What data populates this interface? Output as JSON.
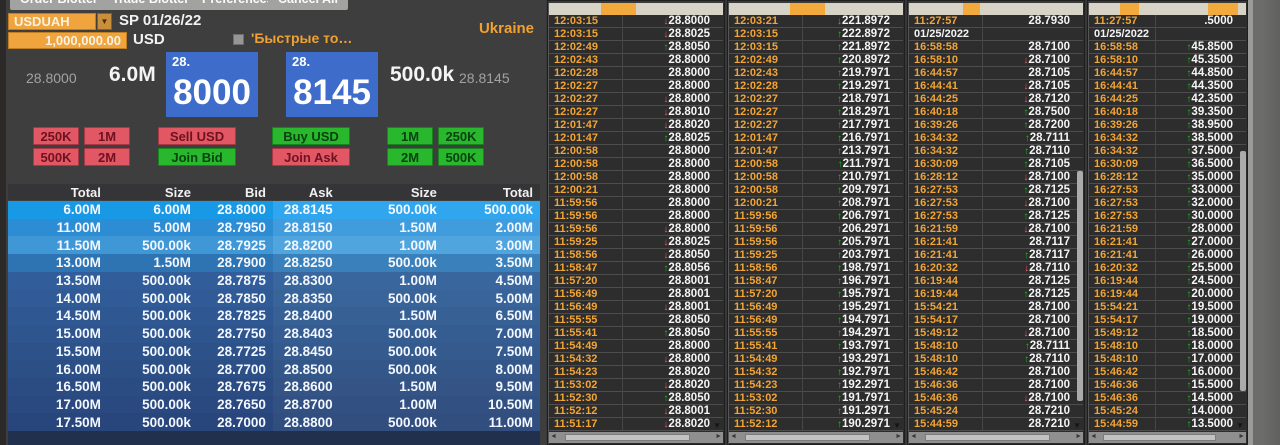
{
  "menu": {
    "tabs": [
      "Order Blotter",
      "Trade Blotter",
      "Preferences",
      "Cancel All"
    ]
  },
  "icons": {
    "dropdown": "▼",
    "up_arrow": "↑",
    "down_arrow": "↓",
    "scroll_left": "◄",
    "scroll_right": "►",
    "scroll_down": "▼"
  },
  "colors": {
    "accent_orange": "#f0a132",
    "field_orange": "#efa43d",
    "buy_green": "#29b72e",
    "sell_red": "#e25764",
    "price_box_blue": "#3e6ccb",
    "time_orange": "#f2a435",
    "up_green": "#14bf1d",
    "down_red": "#e85965"
  },
  "trade_panel": {
    "pair": "USDUAH",
    "value_date": "SP 01/26/22",
    "region": "Ukraine",
    "amount": "1,000,000.00",
    "currency": "USD",
    "quick_trades_label": "'Быстрые то…",
    "bid_low": "28.8000",
    "bid_size": "6.0M",
    "bid_handle": "28.",
    "bid_pips": "8000",
    "ask_handle": "28.",
    "ask_pips": "8145",
    "ask_size": "500.0k",
    "ask_price": "28.8145",
    "buttons": {
      "sell": "Sell USD",
      "join_bid": "Join Bid",
      "buy": "Buy USD",
      "join_ask": "Join Ask",
      "left_amounts": [
        "250K",
        "1M",
        "500K",
        "2M"
      ],
      "right_amounts": [
        "1M",
        "250K",
        "2M",
        "500K"
      ]
    },
    "depth": {
      "headers": [
        "Total",
        "Size",
        "Bid",
        "Ask",
        "Size",
        "Total"
      ],
      "rows": [
        [
          "6.00M",
          "6.00M",
          "28.8000",
          "28.8145",
          "500.00k",
          "500.00k"
        ],
        [
          "11.00M",
          "5.00M",
          "28.7950",
          "28.8150",
          "1.50M",
          "2.00M"
        ],
        [
          "11.50M",
          "500.00k",
          "28.7925",
          "28.8200",
          "1.00M",
          "3.00M"
        ],
        [
          "13.00M",
          "1.50M",
          "28.7900",
          "28.8250",
          "500.00k",
          "3.50M"
        ],
        [
          "13.50M",
          "500.00k",
          "28.7875",
          "28.8300",
          "1.00M",
          "4.50M"
        ],
        [
          "14.00M",
          "500.00k",
          "28.7850",
          "28.8350",
          "500.00k",
          "5.00M"
        ],
        [
          "14.50M",
          "500.00k",
          "28.7825",
          "28.8400",
          "1.50M",
          "6.50M"
        ],
        [
          "15.00M",
          "500.00k",
          "28.7750",
          "28.8403",
          "500.00k",
          "7.00M"
        ],
        [
          "15.50M",
          "500.00k",
          "28.7725",
          "28.8450",
          "500.00k",
          "7.50M"
        ],
        [
          "16.00M",
          "500.00k",
          "28.7700",
          "28.8500",
          "500.00k",
          "8.00M"
        ],
        [
          "16.50M",
          "500.00k",
          "28.7675",
          "28.8600",
          "1.50M",
          "9.50M"
        ],
        [
          "17.00M",
          "500.00k",
          "28.7650",
          "28.8700",
          "1.00M",
          "10.50M"
        ],
        [
          "17.50M",
          "500.00k",
          "28.7000",
          "28.8800",
          "500.00k",
          "11.00M"
        ]
      ],
      "row_colors": [
        [
          "#1899e6",
          "#2fa6ee"
        ],
        [
          "#2d8dd4",
          "#419cdd"
        ],
        [
          "#3f97d6",
          "#51a5de"
        ],
        [
          "#2e74b2",
          "#3a80ba"
        ],
        [
          "#315e9a",
          "#39679d"
        ],
        [
          "#305b96",
          "#386499"
        ],
        [
          "#2f5892",
          "#376095"
        ],
        [
          "#2e558e",
          "#365d91"
        ],
        [
          "#2d528a",
          "#355a8d"
        ],
        [
          "#2c4f86",
          "#345789"
        ],
        [
          "#2b4c82",
          "#335485"
        ],
        [
          "#2a4980",
          "#325182"
        ],
        [
          "#29467c",
          "#314e7f"
        ]
      ]
    }
  },
  "tickers": [
    {
      "rows": [
        [
          "12:03:15",
          "28.8000",
          "dn"
        ],
        [
          "12:03:15",
          "28.8025",
          "dn"
        ],
        [
          "12:02:49",
          "28.8050",
          "up"
        ],
        [
          "12:02:43",
          "28.8000",
          ""
        ],
        [
          "12:02:28",
          "28.8000",
          ""
        ],
        [
          "12:02:27",
          "28.8000",
          ""
        ],
        [
          "12:02:27",
          "28.8000",
          "dn"
        ],
        [
          "12:02:27",
          "28.8010",
          "dn"
        ],
        [
          "12:01:47",
          "28.8020",
          "dn"
        ],
        [
          "12:01:47",
          "28.8025",
          "up"
        ],
        [
          "12:00:58",
          "28.8000",
          ""
        ],
        [
          "12:00:58",
          "28.8000",
          ""
        ],
        [
          "12:00:58",
          "28.8000",
          ""
        ],
        [
          "12:00:21",
          "28.8000",
          ""
        ],
        [
          "11:59:56",
          "28.8000",
          ""
        ],
        [
          "11:59:56",
          "28.8000",
          ""
        ],
        [
          "11:59:56",
          "28.8000",
          "dn"
        ],
        [
          "11:59:25",
          "28.8025",
          "dn"
        ],
        [
          "11:58:56",
          "28.8050",
          "dn"
        ],
        [
          "11:58:47",
          "28.8056",
          "up"
        ],
        [
          "11:57:20",
          "28.8001",
          ""
        ],
        [
          "11:56:49",
          "28.8001",
          ""
        ],
        [
          "11:56:49",
          "28.8001",
          "dn"
        ],
        [
          "11:55:55",
          "28.8050",
          ""
        ],
        [
          "11:55:41",
          "28.8050",
          "up"
        ],
        [
          "11:54:49",
          "28.8000",
          ""
        ],
        [
          "11:54:32",
          "28.8000",
          "dn"
        ],
        [
          "11:54:23",
          "28.8020",
          ""
        ],
        [
          "11:53:02",
          "28.8020",
          "dn"
        ],
        [
          "11:52:30",
          "28.8050",
          "up"
        ],
        [
          "11:52:12",
          "28.8001",
          "dn"
        ],
        [
          "11:51:17",
          "28.8020",
          "dn"
        ]
      ]
    },
    {
      "rows": [
        [
          "12:03:21",
          "221.8972",
          "dn"
        ],
        [
          "12:03:15",
          "222.8972",
          "up"
        ],
        [
          "12:03:15",
          "221.8972",
          "up"
        ],
        [
          "12:02:49",
          "220.8972",
          "up"
        ],
        [
          "12:02:43",
          "219.7971",
          "up"
        ],
        [
          "12:02:28",
          "219.2971",
          "up"
        ],
        [
          "12:02:27",
          "218.7971",
          "up"
        ],
        [
          "12:02:27",
          "218.2971",
          "up"
        ],
        [
          "12:02:27",
          "217.7971",
          "up"
        ],
        [
          "12:01:47",
          "216.7971",
          "up"
        ],
        [
          "12:01:47",
          "213.7971",
          "up"
        ],
        [
          "12:00:58",
          "211.7971",
          "up"
        ],
        [
          "12:00:58",
          "210.7971",
          "up"
        ],
        [
          "12:00:58",
          "209.7971",
          "up"
        ],
        [
          "12:00:21",
          "208.7971",
          "up"
        ],
        [
          "11:59:56",
          "206.7971",
          "up"
        ],
        [
          "11:59:56",
          "206.2971",
          "up"
        ],
        [
          "11:59:56",
          "205.7971",
          "up"
        ],
        [
          "11:59:25",
          "203.7971",
          "up"
        ],
        [
          "11:58:56",
          "198.7971",
          "up"
        ],
        [
          "11:58:47",
          "196.7971",
          "up"
        ],
        [
          "11:57:20",
          "195.7971",
          "up"
        ],
        [
          "11:56:49",
          "195.2971",
          "up"
        ],
        [
          "11:56:49",
          "194.7971",
          "up"
        ],
        [
          "11:55:55",
          "194.2971",
          "up"
        ],
        [
          "11:55:41",
          "193.7971",
          "up"
        ],
        [
          "11:54:49",
          "193.2971",
          "up"
        ],
        [
          "11:54:32",
          "192.7971",
          "up"
        ],
        [
          "11:54:23",
          "192.2971",
          "up"
        ],
        [
          "11:53:02",
          "191.7971",
          "up"
        ],
        [
          "11:52:30",
          "191.2971",
          "up"
        ],
        [
          "11:52:12",
          "190.2971",
          "up"
        ]
      ]
    },
    {
      "rows": [
        [
          "11:27:57",
          "28.7930",
          ""
        ],
        [
          "01/25/2022",
          "",
          "date"
        ],
        [
          "16:58:58",
          "28.7100",
          ""
        ],
        [
          "16:58:10",
          "28.7100",
          "dn"
        ],
        [
          "16:44:57",
          "28.7105",
          ""
        ],
        [
          "16:44:41",
          "28.7105",
          "dn"
        ],
        [
          "16:44:25",
          "28.7120",
          "dn"
        ],
        [
          "16:40:18",
          "28.7500",
          "up"
        ],
        [
          "16:39:26",
          "28.7200",
          "up"
        ],
        [
          "16:34:32",
          "28.7111",
          "up"
        ],
        [
          "16:34:32",
          "28.7110",
          "up"
        ],
        [
          "16:30:09",
          "28.7105",
          "up"
        ],
        [
          "16:28:12",
          "28.7100",
          "dn"
        ],
        [
          "16:27:53",
          "28.7125",
          "up"
        ],
        [
          "16:27:53",
          "28.7100",
          "dn"
        ],
        [
          "16:27:53",
          "28.7125",
          "up"
        ],
        [
          "16:21:59",
          "28.7100",
          "dn"
        ],
        [
          "16:21:41",
          "28.7117",
          ""
        ],
        [
          "16:21:41",
          "28.7117",
          "up"
        ],
        [
          "16:20:32",
          "28.7110",
          "dn"
        ],
        [
          "16:19:44",
          "28.7125",
          ""
        ],
        [
          "16:19:44",
          "28.7125",
          "up"
        ],
        [
          "15:54:21",
          "28.7100",
          ""
        ],
        [
          "15:54:17",
          "28.7100",
          ""
        ],
        [
          "15:49:12",
          "28.7100",
          "dn"
        ],
        [
          "15:48:10",
          "28.7111",
          "up"
        ],
        [
          "15:48:10",
          "28.7110",
          "up"
        ],
        [
          "15:46:42",
          "28.7100",
          ""
        ],
        [
          "15:46:36",
          "28.7100",
          ""
        ],
        [
          "15:46:36",
          "28.7100",
          "dn"
        ],
        [
          "15:45:24",
          "28.7210",
          ""
        ],
        [
          "15:44:59",
          "28.7210",
          ""
        ]
      ]
    },
    {
      "rows": [
        [
          "11:27:57",
          ".5000",
          ""
        ],
        [
          "01/25/2022",
          "",
          "date"
        ],
        [
          "16:58:58",
          "45.8500",
          "up"
        ],
        [
          "16:58:10",
          "45.3500",
          "up"
        ],
        [
          "16:44:57",
          "44.8500",
          "up"
        ],
        [
          "16:44:41",
          "44.3500",
          "up"
        ],
        [
          "16:44:25",
          "42.3500",
          "up"
        ],
        [
          "16:40:18",
          "39.3500",
          "up"
        ],
        [
          "16:39:26",
          "38.9500",
          "up"
        ],
        [
          "16:34:32",
          "38.5000",
          "up"
        ],
        [
          "16:34:32",
          "37.5000",
          "up"
        ],
        [
          "16:30:09",
          "36.5000",
          "up"
        ],
        [
          "16:28:12",
          "35.0000",
          "up"
        ],
        [
          "16:27:53",
          "33.0000",
          "up"
        ],
        [
          "16:27:53",
          "32.0000",
          "up"
        ],
        [
          "16:27:53",
          "30.0000",
          "up"
        ],
        [
          "16:21:59",
          "28.0000",
          "up"
        ],
        [
          "16:21:41",
          "27.0000",
          "up"
        ],
        [
          "16:21:41",
          "26.0000",
          "up"
        ],
        [
          "16:20:32",
          "25.5000",
          "up"
        ],
        [
          "16:19:44",
          "24.5000",
          "up"
        ],
        [
          "16:19:44",
          "20.0000",
          "up"
        ],
        [
          "15:54:21",
          "19.5000",
          "up"
        ],
        [
          "15:54:17",
          "19.0000",
          "up"
        ],
        [
          "15:49:12",
          "18.5000",
          "up"
        ],
        [
          "15:48:10",
          "18.0000",
          "up"
        ],
        [
          "15:48:10",
          "17.0000",
          "up"
        ],
        [
          "15:46:42",
          "16.0000",
          "up"
        ],
        [
          "15:46:36",
          "15.5000",
          "up"
        ],
        [
          "15:46:36",
          "14.5000",
          "up"
        ],
        [
          "15:45:24",
          "14.0000",
          "up"
        ],
        [
          "15:44:59",
          "13.5000",
          "up"
        ]
      ]
    }
  ]
}
